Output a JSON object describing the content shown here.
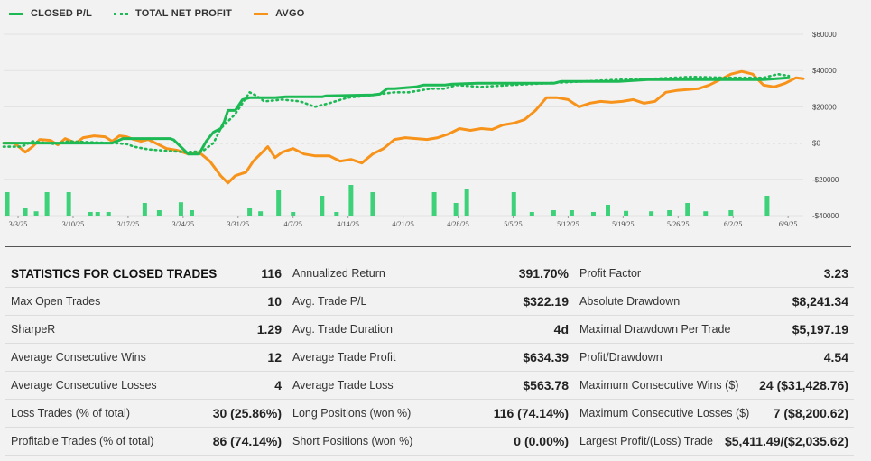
{
  "legend": {
    "closed": "CLOSED P/L",
    "net": "TOTAL NET PROFIT",
    "avgo": "AVGO"
  },
  "colors": {
    "green": "#1db954",
    "orange": "#f7931a",
    "bar": "#3dd17a",
    "grid": "#e1e1e1",
    "zero": "#999999"
  },
  "chart_data": {
    "type": "line",
    "x_tick_labels": [
      "3/3/25",
      "3/10/25",
      "3/17/25",
      "3/24/25",
      "3/31/25",
      "4/7/25",
      "4/14/25",
      "4/21/25",
      "4/28/25",
      "5/5/25",
      "5/12/25",
      "5/19/25",
      "5/26/25",
      "6/2/25",
      "6/9/25"
    ],
    "y_tick_labels": [
      "$60000",
      "$40000",
      "$20000",
      "$0",
      "-$20000",
      "-$40000"
    ],
    "y_ticks": [
      60000,
      40000,
      20000,
      0,
      -20000,
      -40000
    ],
    "ylim": [
      -40000,
      60000
    ],
    "x_range_days": [
      0,
      105
    ],
    "series": [
      {
        "name": "CLOSED P/L",
        "style": "solid",
        "color": "#1db954",
        "points": [
          [
            0,
            0
          ],
          [
            17,
            0
          ],
          [
            30,
            -1
          ],
          [
            33,
            2500
          ],
          [
            46,
            2500
          ],
          [
            47,
            1800
          ],
          [
            51,
            -6000
          ],
          [
            54,
            -6000
          ],
          [
            56,
            1000
          ],
          [
            58,
            6000
          ],
          [
            60,
            8000
          ],
          [
            61,
            12000
          ],
          [
            62,
            18000
          ],
          [
            64,
            18000
          ],
          [
            66,
            24000
          ],
          [
            68,
            25000
          ],
          [
            75,
            25000
          ],
          [
            78,
            25500
          ],
          [
            86,
            25500
          ],
          [
            88,
            25500
          ],
          [
            89,
            26000
          ],
          [
            102,
            26500
          ],
          [
            104,
            27000
          ],
          [
            106,
            30000
          ],
          [
            108,
            30000
          ],
          [
            114,
            31000
          ],
          [
            116,
            32000
          ],
          [
            118,
            32000
          ],
          [
            122,
            32000
          ],
          [
            124,
            32500
          ],
          [
            131,
            33000
          ],
          [
            134,
            33000
          ],
          [
            152,
            33000
          ],
          [
            154,
            34000
          ],
          [
            170,
            34000
          ],
          [
            178,
            35000
          ],
          [
            210,
            35000
          ],
          [
            217,
            36000
          ]
        ]
      },
      {
        "name": "TOTAL NET PROFIT",
        "style": "dotted",
        "color": "#1db954",
        "points": [
          [
            0,
            -2000
          ],
          [
            5,
            -2000
          ],
          [
            8,
            1000
          ],
          [
            14,
            -500
          ],
          [
            18,
            1000
          ],
          [
            30,
            0
          ],
          [
            34,
            -500
          ],
          [
            36,
            -2000
          ],
          [
            40,
            -3500
          ],
          [
            50,
            -5000
          ],
          [
            55,
            -4500
          ],
          [
            58,
            0
          ],
          [
            60,
            8000
          ],
          [
            62,
            12000
          ],
          [
            64,
            16000
          ],
          [
            66,
            22000
          ],
          [
            68,
            28000
          ],
          [
            70,
            26000
          ],
          [
            72,
            23000
          ],
          [
            77,
            24000
          ],
          [
            82,
            23000
          ],
          [
            86,
            20000
          ],
          [
            90,
            22000
          ],
          [
            95,
            25000
          ],
          [
            100,
            26000
          ],
          [
            108,
            28000
          ],
          [
            112,
            28000
          ],
          [
            118,
            30000
          ],
          [
            122,
            30000
          ],
          [
            125,
            32000
          ],
          [
            132,
            31000
          ],
          [
            140,
            32000
          ],
          [
            150,
            33000
          ],
          [
            160,
            34000
          ],
          [
            170,
            35000
          ],
          [
            180,
            35500
          ],
          [
            190,
            36500
          ],
          [
            200,
            36000
          ],
          [
            210,
            36000
          ],
          [
            214,
            38000
          ],
          [
            217,
            37000
          ]
        ]
      },
      {
        "name": "AVGO",
        "style": "solid",
        "color": "#f7931a",
        "points": [
          [
            0,
            0
          ],
          [
            3,
            0
          ],
          [
            6,
            -5000
          ],
          [
            8,
            -2000
          ],
          [
            10,
            2000
          ],
          [
            13,
            1500
          ],
          [
            15,
            -1000
          ],
          [
            17,
            2500
          ],
          [
            20,
            0
          ],
          [
            22,
            3000
          ],
          [
            25,
            4000
          ],
          [
            28,
            3500
          ],
          [
            30,
            1000
          ],
          [
            32,
            4000
          ],
          [
            34,
            3500
          ],
          [
            36,
            2000
          ],
          [
            38,
            1000
          ],
          [
            40,
            2000
          ],
          [
            42,
            0
          ],
          [
            45,
            -3000
          ],
          [
            48,
            -4000
          ],
          [
            51,
            -6000
          ],
          [
            54,
            -5000
          ],
          [
            57,
            -10000
          ],
          [
            60,
            -18000
          ],
          [
            62,
            -22000
          ],
          [
            64,
            -18000
          ],
          [
            67,
            -16000
          ],
          [
            69,
            -10000
          ],
          [
            71,
            -6000
          ],
          [
            73,
            -2000
          ],
          [
            75,
            -8000
          ],
          [
            77,
            -5000
          ],
          [
            80,
            -3000
          ],
          [
            83,
            -6000
          ],
          [
            86,
            -7000
          ],
          [
            90,
            -7000
          ],
          [
            93,
            -10000
          ],
          [
            96,
            -9000
          ],
          [
            99,
            -11000
          ],
          [
            102,
            -6000
          ],
          [
            105,
            -3000
          ],
          [
            108,
            2000
          ],
          [
            111,
            3000
          ],
          [
            114,
            2500
          ],
          [
            117,
            2000
          ],
          [
            120,
            3000
          ],
          [
            123,
            5000
          ],
          [
            126,
            8000
          ],
          [
            129,
            7000
          ],
          [
            132,
            8000
          ],
          [
            135,
            7500
          ],
          [
            138,
            10000
          ],
          [
            141,
            11000
          ],
          [
            144,
            13000
          ],
          [
            147,
            18000
          ],
          [
            150,
            25000
          ],
          [
            153,
            25000
          ],
          [
            156,
            24000
          ],
          [
            159,
            20000
          ],
          [
            162,
            22000
          ],
          [
            165,
            23000
          ],
          [
            168,
            22500
          ],
          [
            171,
            23000
          ],
          [
            174,
            24000
          ],
          [
            177,
            22000
          ],
          [
            180,
            23000
          ],
          [
            183,
            28000
          ],
          [
            186,
            29000
          ],
          [
            189,
            29500
          ],
          [
            192,
            30000
          ],
          [
            195,
            32000
          ],
          [
            198,
            35000
          ],
          [
            201,
            38000
          ],
          [
            204,
            39500
          ],
          [
            207,
            38000
          ],
          [
            210,
            32000
          ],
          [
            213,
            31000
          ],
          [
            216,
            33000
          ],
          [
            219,
            36000
          ],
          [
            221,
            35500
          ]
        ]
      }
    ],
    "volume_bars": [
      {
        "x": 1,
        "v": 0.65
      },
      {
        "x": 6,
        "v": 0.2
      },
      {
        "x": 9,
        "v": 0.12
      },
      {
        "x": 12,
        "v": 0.65
      },
      {
        "x": 18,
        "v": 0.65
      },
      {
        "x": 24,
        "v": 0.1
      },
      {
        "x": 26,
        "v": 0.1
      },
      {
        "x": 29,
        "v": 0.1
      },
      {
        "x": 39,
        "v": 0.35
      },
      {
        "x": 43,
        "v": 0.15
      },
      {
        "x": 49,
        "v": 0.37
      },
      {
        "x": 52,
        "v": 0.15
      },
      {
        "x": 68,
        "v": 0.2
      },
      {
        "x": 71,
        "v": 0.12
      },
      {
        "x": 76,
        "v": 0.7
      },
      {
        "x": 80,
        "v": 0.1
      },
      {
        "x": 88,
        "v": 0.55
      },
      {
        "x": 92,
        "v": 0.1
      },
      {
        "x": 96,
        "v": 0.85
      },
      {
        "x": 102,
        "v": 0.65
      },
      {
        "x": 119,
        "v": 0.65
      },
      {
        "x": 125,
        "v": 0.35
      },
      {
        "x": 128,
        "v": 0.73
      },
      {
        "x": 141,
        "v": 0.65
      },
      {
        "x": 146,
        "v": 0.1
      },
      {
        "x": 152,
        "v": 0.15
      },
      {
        "x": 157,
        "v": 0.15
      },
      {
        "x": 163,
        "v": 0.1
      },
      {
        "x": 167,
        "v": 0.3
      },
      {
        "x": 172,
        "v": 0.13
      },
      {
        "x": 179,
        "v": 0.12
      },
      {
        "x": 184,
        "v": 0.15
      },
      {
        "x": 189,
        "v": 0.35
      },
      {
        "x": 194,
        "v": 0.12
      },
      {
        "x": 201,
        "v": 0.15
      },
      {
        "x": 211,
        "v": 0.55
      }
    ]
  },
  "stats": [
    [
      {
        "label": "STATISTICS FOR CLOSED TRADES",
        "value": "116",
        "header": true
      },
      {
        "label": "Annualized Return",
        "value": "391.70%"
      },
      {
        "label": "Profit Factor",
        "value": "3.23"
      }
    ],
    [
      {
        "label": "Max Open Trades",
        "value": "10"
      },
      {
        "label": "Avg. Trade P/L",
        "value": "$322.19"
      },
      {
        "label": "Absolute Drawdown",
        "value": "$8,241.34"
      }
    ],
    [
      {
        "label": "SharpeR",
        "value": "1.29"
      },
      {
        "label": "Avg. Trade Duration",
        "value": "4d"
      },
      {
        "label": "Maximal Drawdown Per Trade",
        "value": "$5,197.19"
      }
    ],
    [
      {
        "label": "Average Consecutive Wins",
        "value": "12"
      },
      {
        "label": "Average Trade Profit",
        "value": "$634.39"
      },
      {
        "label": "Profit/Drawdown",
        "value": "4.54"
      }
    ],
    [
      {
        "label": "Average Consecutive Losses",
        "value": "4"
      },
      {
        "label": "Average Trade Loss",
        "value": "$563.78"
      },
      {
        "label": "Maximum Consecutive Wins ($)",
        "value": "24 ($31,428.76)"
      }
    ],
    [
      {
        "label": "Loss Trades (% of total)",
        "value": "30 (25.86%)"
      },
      {
        "label": "Long Positions (won %)",
        "value": "116 (74.14%)"
      },
      {
        "label": "Maximum Consecutive Losses ($)",
        "value": "7 ($8,200.62)"
      }
    ],
    [
      {
        "label": "Profitable Trades (% of total)",
        "value": "86 (74.14%)"
      },
      {
        "label": "Short Positions (won %)",
        "value": "0 (0.00%)"
      },
      {
        "label": "Largest Profit/(Loss) Trade",
        "value": "$5,411.49/($2,035.62)"
      }
    ]
  ]
}
